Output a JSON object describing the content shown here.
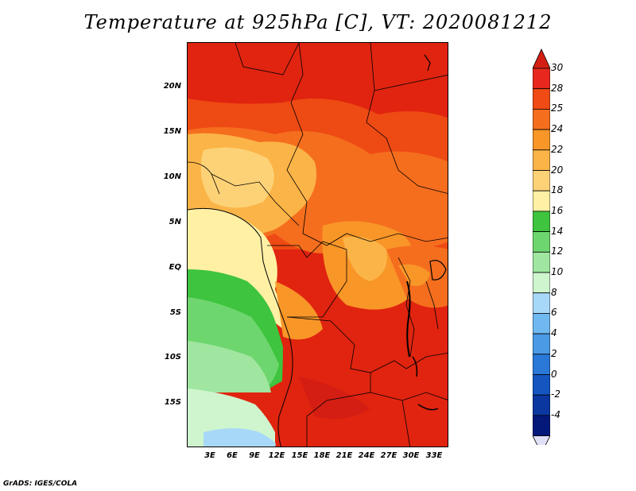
{
  "title": "Temperature at 925hPa [C], VT: 2020081212",
  "credit": "GrADS: IGES/COLA",
  "map": {
    "y_ticks": [
      "20N",
      "15N",
      "10N",
      "5N",
      "EQ",
      "5S",
      "10S",
      "15S"
    ],
    "x_ticks": [
      "3E",
      "6E",
      "9E",
      "12E",
      "15E",
      "18E",
      "21E",
      "24E",
      "27E",
      "30E",
      "33E"
    ]
  },
  "colorbar": {
    "labels": [
      "30",
      "28",
      "25",
      "24",
      "22",
      "20",
      "18",
      "16",
      "14",
      "12",
      "10",
      "8",
      "6",
      "4",
      "2",
      "0",
      "-2",
      "-4"
    ],
    "colors": [
      "#e8281e",
      "#f04b14",
      "#f56e1e",
      "#f99628",
      "#fbb447",
      "#fdd277",
      "#fff0a4",
      "#3ec43e",
      "#6ed66e",
      "#a0e6a0",
      "#cef5ce",
      "#a8d8f8",
      "#70b8f0",
      "#4a9ae6",
      "#2a78d8",
      "#1455c0",
      "#0a37a0",
      "#04187a"
    ],
    "top_color": "#d41e14",
    "bottom_color": "#e0e0f8"
  }
}
